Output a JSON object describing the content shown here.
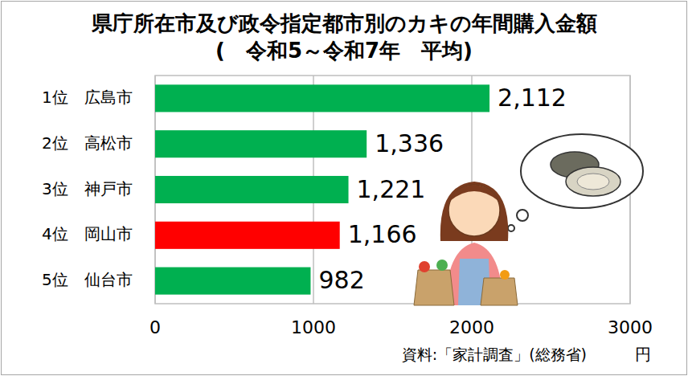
{
  "chart_data": {
    "type": "bar",
    "orientation": "horizontal",
    "title": "県庁所在市及び政令指定都市別のカキの年間購入金額",
    "subtitle": "(　令和5～令和7年　平均)",
    "categories": [
      "1位　広島市",
      "2位　高松市",
      "3位　神戸市",
      "4位　岡山市",
      "5位　仙台市"
    ],
    "values": [
      2112,
      1336,
      1221,
      1166,
      982
    ],
    "value_labels": [
      "2,112",
      "1,336",
      "1,221",
      "1,166",
      "982"
    ],
    "colors": [
      "#00b050",
      "#00b050",
      "#00b050",
      "#ff0000",
      "#00b050"
    ],
    "xlim": [
      0,
      3000
    ],
    "xticks": [
      0,
      1000,
      2000,
      3000
    ],
    "x_label": "円",
    "annotations": [
      "資料:「家計調査」(総務省)"
    ],
    "grid": true,
    "data_labels": true
  }
}
